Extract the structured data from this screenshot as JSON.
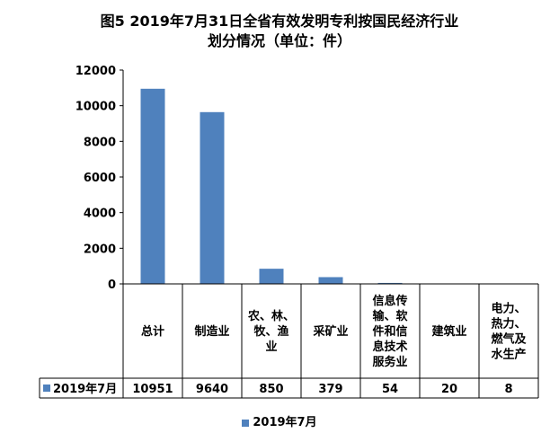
{
  "chart_data": {
    "type": "bar",
    "title": "图5  2019年7月31日全省有效发明专利按国民经济行业",
    "subtitle": "划分情况（单位：件）",
    "categories": [
      [
        "总计"
      ],
      [
        "制造业"
      ],
      [
        "农、林、",
        "牧、渔",
        "业"
      ],
      [
        "采矿业"
      ],
      [
        "信息传",
        "输、软",
        "件和信",
        "息技术",
        "服务业"
      ],
      [
        "建筑业"
      ],
      [
        "电力、",
        "热力、",
        "燃气及",
        "水生产"
      ]
    ],
    "series": [
      {
        "name": "2019年7月",
        "values": [
          10951,
          9640,
          850,
          379,
          54,
          20,
          8
        ],
        "color": "#4F81BD"
      }
    ],
    "ylim": [
      0,
      12000
    ],
    "yticks": [
      0,
      2000,
      4000,
      6000,
      8000,
      10000,
      12000
    ],
    "grid": false,
    "data_table": true,
    "legend_position": "bottom"
  }
}
